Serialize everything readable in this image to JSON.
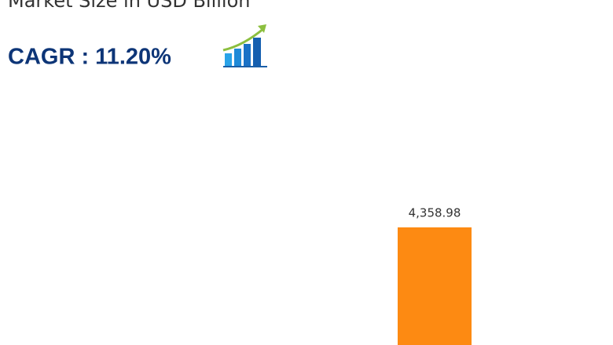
{
  "chart_data": {
    "type": "bar",
    "title": "Market Size in USD Billion",
    "subtitle": "CAGR : 11.20%",
    "categories": [
      null
    ],
    "values": [
      4358.98
    ],
    "value_labels": [
      "4,358.98"
    ],
    "color": "#fd8a12"
  }
}
